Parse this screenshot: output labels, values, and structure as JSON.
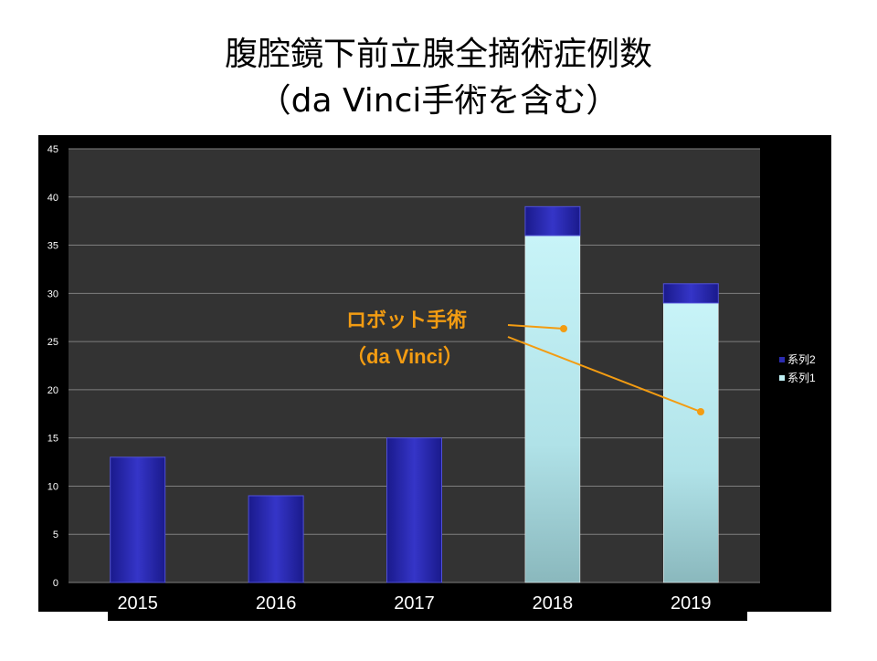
{
  "slide": {
    "title_line1": "腹腔鏡下前立腺全摘術症例数",
    "title_line2": "（da Vinci手術を含む）"
  },
  "annotation": {
    "line1": "ロボット手術",
    "line2": "（da Vinci）",
    "color": "#f39c12"
  },
  "colors": {
    "chart_background": "#000000",
    "plot_background": "#333333",
    "gridline": "#7f7f7f",
    "series2": "#2b2bb0",
    "series1": "#bfeff3",
    "axis_text": "#ffffff"
  },
  "chart_data": {
    "type": "bar",
    "stacked": true,
    "categories": [
      "2015",
      "2016",
      "2017",
      "2018",
      "2019"
    ],
    "series": [
      {
        "name": "系列1",
        "values": [
          0,
          0,
          0,
          36,
          29
        ]
      },
      {
        "name": "系列2",
        "values": [
          13,
          9,
          15,
          3,
          2
        ]
      }
    ],
    "ylim": [
      0,
      45
    ],
    "yticks": [
      "0",
      "5",
      "10",
      "15",
      "20",
      "25",
      "30",
      "35",
      "40",
      "45"
    ],
    "legend": [
      "系列2",
      "系列1"
    ],
    "legend_position": "right",
    "grid": true
  }
}
